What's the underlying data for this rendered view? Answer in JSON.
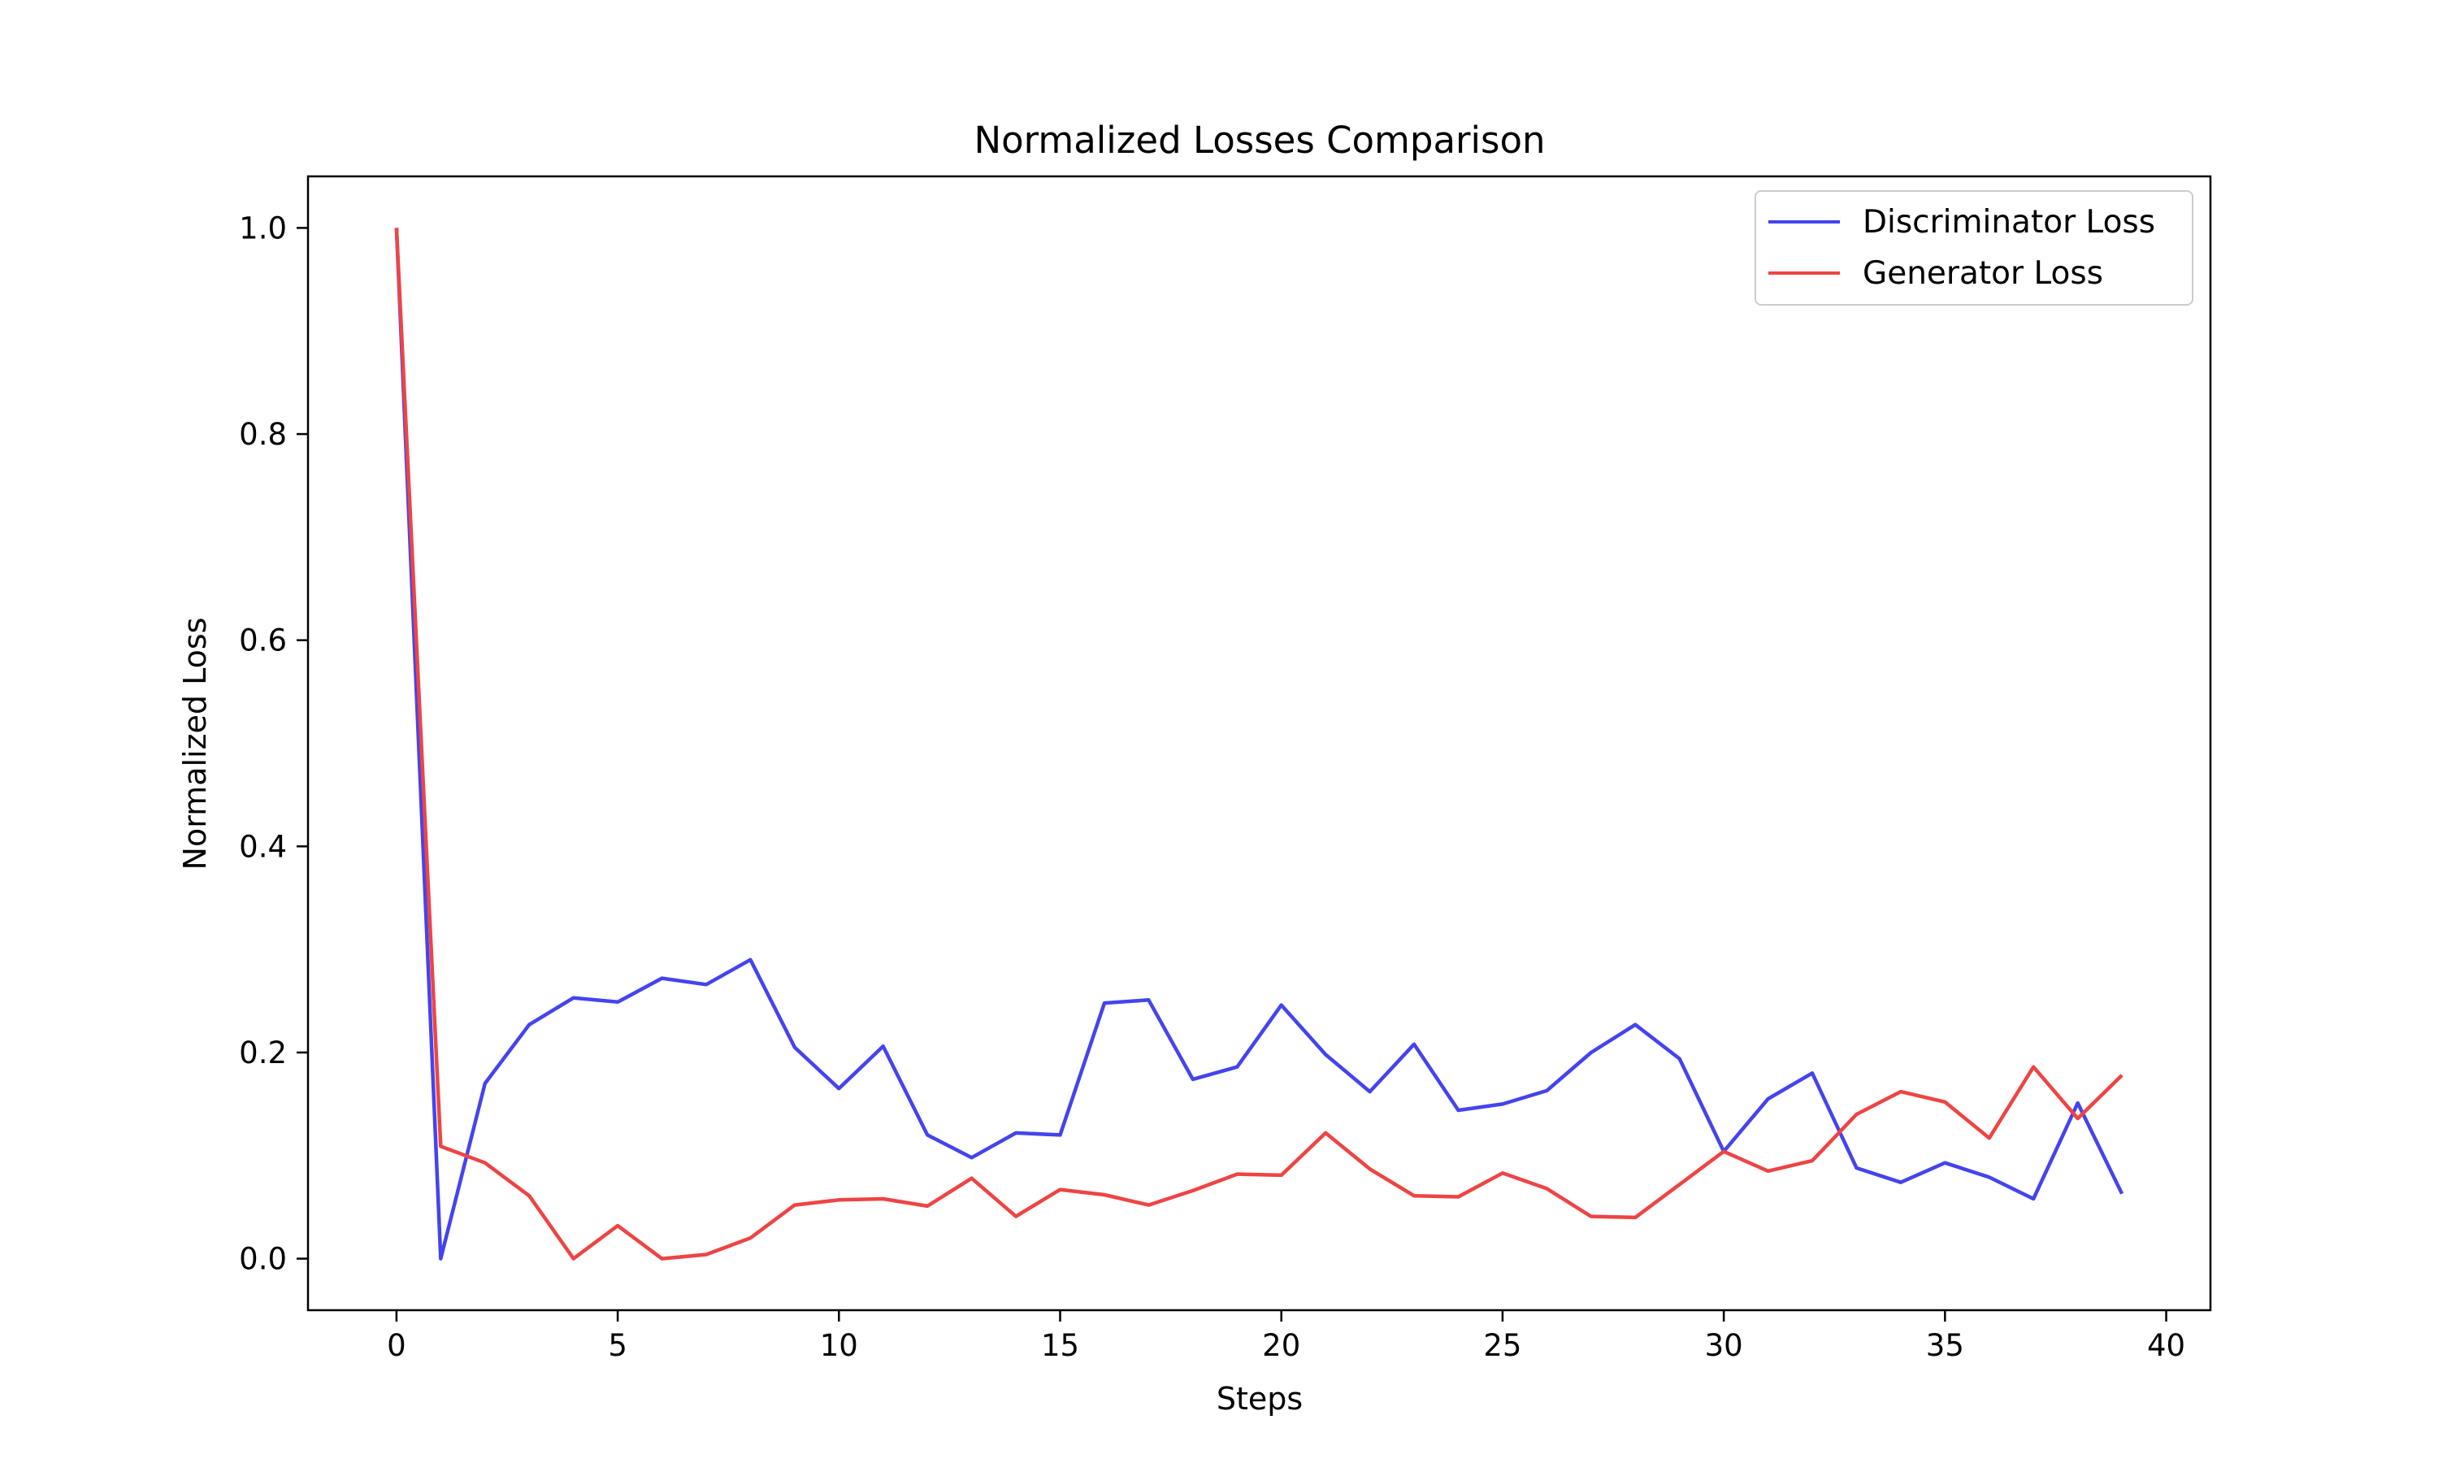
{
  "chart_data": {
    "type": "line",
    "title": "Normalized Losses Comparison",
    "xlabel": "Steps",
    "ylabel": "Normalized Loss",
    "xlim": [
      -2,
      41
    ],
    "ylim": [
      -0.05,
      1.05
    ],
    "xticks": [
      0,
      5,
      10,
      15,
      20,
      25,
      30,
      35,
      40
    ],
    "yticks": [
      0.0,
      0.2,
      0.4,
      0.6,
      0.8,
      1.0
    ],
    "xtick_labels": [
      "0",
      "5",
      "10",
      "15",
      "20",
      "25",
      "30",
      "35",
      "40"
    ],
    "ytick_labels": [
      "0.0",
      "0.2",
      "0.4",
      "0.6",
      "0.8",
      "1.0"
    ],
    "grid": false,
    "legend_position": "top-right",
    "x": [
      0,
      1,
      2,
      3,
      4,
      5,
      6,
      7,
      8,
      9,
      10,
      11,
      12,
      13,
      14,
      15,
      16,
      17,
      18,
      19,
      20,
      21,
      22,
      23,
      24,
      25,
      26,
      27,
      28,
      29,
      30,
      31,
      32,
      33,
      34,
      35,
      36,
      37,
      38,
      39
    ],
    "series": [
      {
        "name": "Discriminator Loss",
        "color": "#4444ee",
        "values": [
          1.0,
          0.0,
          0.17,
          0.227,
          0.253,
          0.249,
          0.272,
          0.266,
          0.29,
          0.205,
          0.165,
          0.206,
          0.12,
          0.098,
          0.122,
          0.12,
          0.248,
          0.251,
          0.174,
          0.186,
          0.246,
          0.198,
          0.162,
          0.208,
          0.144,
          0.15,
          0.163,
          0.2,
          0.227,
          0.194,
          0.104,
          0.155,
          0.18,
          0.088,
          0.074,
          0.093,
          0.079,
          0.058,
          0.151,
          0.063
        ]
      },
      {
        "name": "Generator Loss",
        "color": "#ee4444",
        "values": [
          1.0,
          0.109,
          0.093,
          0.061,
          0.0,
          0.032,
          0.0,
          0.004,
          0.02,
          0.052,
          0.057,
          0.058,
          0.051,
          0.078,
          0.041,
          0.067,
          0.062,
          0.052,
          0.066,
          0.082,
          0.081,
          0.122,
          0.087,
          0.061,
          0.06,
          0.083,
          0.068,
          0.041,
          0.04,
          0.072,
          0.104,
          0.085,
          0.095,
          0.14,
          0.162,
          0.152,
          0.117,
          0.186,
          0.136,
          0.178
        ]
      }
    ]
  }
}
